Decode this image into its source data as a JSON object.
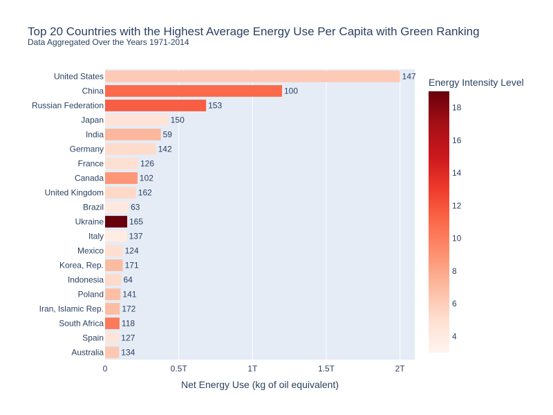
{
  "chart_data": {
    "type": "bar",
    "orientation": "horizontal",
    "title": "Top 20 Countries with the Highest Average Energy Use Per Capita with Green Ranking",
    "subtitle": "Data Aggregated Over the Years 1971-2014",
    "xlabel": "Net Energy Use (kg of oil equivalent)",
    "ylabel": "",
    "xlim": [
      0,
      2.1
    ],
    "x_tick_values": [
      0,
      0.5,
      1,
      1.5,
      2
    ],
    "x_tick_labels": [
      "0",
      "0.5T",
      "1T",
      "1.5T",
      "2T"
    ],
    "grid": true,
    "colorbar": {
      "title": "Energy Intensity Level",
      "range": [
        3,
        19
      ],
      "tick_values": [
        4,
        6,
        8,
        10,
        12,
        14,
        16,
        18
      ],
      "tick_labels": [
        "4",
        "6",
        "8",
        "10",
        "12",
        "14",
        "16",
        "18"
      ],
      "colorscale": [
        "#fff5f0",
        "#fee0d2",
        "#fcbba1",
        "#fc9272",
        "#fb6a4a",
        "#ef3b2c",
        "#cb181d",
        "#a50f15",
        "#67000d"
      ]
    },
    "categories": [
      "United States",
      "China",
      "Russian Federation",
      "Japan",
      "India",
      "Germany",
      "France",
      "Canada",
      "United Kingdom",
      "Brazil",
      "Ukraine",
      "Italy",
      "Mexico",
      "Korea, Rep.",
      "Indonesia",
      "Poland",
      "Iran, Islamic Rep.",
      "South Africa",
      "Spain",
      "Australia"
    ],
    "values": [
      2.0,
      1.2,
      0.685,
      0.43,
      0.378,
      0.345,
      0.225,
      0.22,
      0.21,
      0.16,
      0.15,
      0.148,
      0.12,
      0.12,
      0.11,
      0.105,
      0.1,
      0.098,
      0.095,
      0.095
    ],
    "intensity": [
      6.2,
      11.0,
      11.5,
      4.6,
      7.2,
      5.2,
      5.0,
      8.8,
      5.4,
      4.1,
      19.0,
      3.9,
      5.0,
      7.0,
      5.3,
      6.8,
      6.9,
      10.2,
      4.5,
      6.3
    ],
    "data_labels": [
      "147",
      "100",
      "153",
      "150",
      "59",
      "142",
      "126",
      "102",
      "162",
      "63",
      "165",
      "137",
      "124",
      "171",
      "64",
      "141",
      "172",
      "118",
      "127",
      "134"
    ]
  }
}
